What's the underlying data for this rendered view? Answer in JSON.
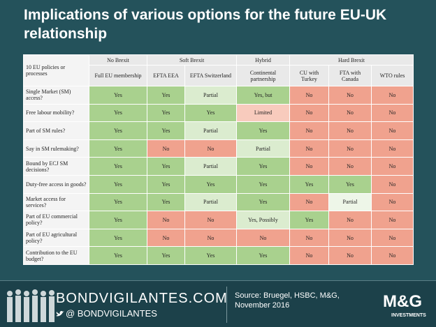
{
  "title": "Implications of various options for the future EU-UK relationship",
  "table": {
    "corner": "10 EU policies or processes",
    "groups": [
      "No Brexit",
      "Soft Brexit",
      "Hybrid",
      "Hard Brexit"
    ],
    "columns": [
      "Full EU membership",
      "EFTA EEA",
      "EFTA Switzerland",
      "Continental partnership",
      "CU with Turkey",
      "FTA with Canada",
      "WTO rules"
    ],
    "rows": [
      {
        "label": "Single Market (SM) access?",
        "cells": [
          "Yes",
          "Yes",
          "Partial",
          "Yes, but",
          "No",
          "No",
          "No"
        ],
        "colors": [
          "#a9d18e",
          "#a9d18e",
          "#dbeccf",
          "#a9d18e",
          "#f0a28e",
          "#f0a28e",
          "#f0a28e"
        ]
      },
      {
        "label": "Free labour mobility?",
        "cells": [
          "Yes",
          "Yes",
          "Yes",
          "Limited",
          "No",
          "No",
          "No"
        ],
        "colors": [
          "#a9d18e",
          "#a9d18e",
          "#a9d18e",
          "#f8cbbd",
          "#f0a28e",
          "#f0a28e",
          "#f0a28e"
        ]
      },
      {
        "label": "Part of SM rules?",
        "cells": [
          "Yes",
          "Yes",
          "Partial",
          "Yes",
          "No",
          "No",
          "No"
        ],
        "colors": [
          "#a9d18e",
          "#a9d18e",
          "#dbeccf",
          "#a9d18e",
          "#f0a28e",
          "#f0a28e",
          "#f0a28e"
        ]
      },
      {
        "label": "Say in SM rulemaking?",
        "cells": [
          "Yes",
          "No",
          "No",
          "Partial",
          "No",
          "No",
          "No"
        ],
        "colors": [
          "#a9d18e",
          "#f0a28e",
          "#f0a28e",
          "#dbeccf",
          "#f0a28e",
          "#f0a28e",
          "#f0a28e"
        ]
      },
      {
        "label": "Bound by ECJ SM decisions?",
        "cells": [
          "Yes",
          "Yes",
          "Partial",
          "Yes",
          "No",
          "No",
          "No"
        ],
        "colors": [
          "#a9d18e",
          "#a9d18e",
          "#dbeccf",
          "#a9d18e",
          "#f0a28e",
          "#f0a28e",
          "#f0a28e"
        ]
      },
      {
        "label": "Duty-free access in goods?",
        "cells": [
          "Yes",
          "Yes",
          "Yes",
          "Yes",
          "Yes",
          "Yes",
          "No"
        ],
        "colors": [
          "#a9d18e",
          "#a9d18e",
          "#a9d18e",
          "#a9d18e",
          "#a9d18e",
          "#a9d18e",
          "#f0a28e"
        ]
      },
      {
        "label": "Market access for services?",
        "cells": [
          "Yes",
          "Yes",
          "Partial",
          "Yes",
          "No",
          "Partial",
          "No"
        ],
        "colors": [
          "#a9d18e",
          "#a9d18e",
          "#dbeccf",
          "#a9d18e",
          "#f0a28e",
          "#eef6e8",
          "#f0a28e"
        ]
      },
      {
        "label": "Part of EU commercial policy?",
        "cells": [
          "Yes",
          "No",
          "No",
          "Yes, Possibly",
          "Yes",
          "No",
          "No"
        ],
        "colors": [
          "#a9d18e",
          "#f0a28e",
          "#f0a28e",
          "#dbeccf",
          "#a9d18e",
          "#f0a28e",
          "#f0a28e"
        ]
      },
      {
        "label": "Part of EU agricultural policy?",
        "cells": [
          "Yes",
          "No",
          "No",
          "No",
          "No",
          "No",
          "No"
        ],
        "colors": [
          "#a9d18e",
          "#f0a28e",
          "#f0a28e",
          "#f0a28e",
          "#f0a28e",
          "#f0a28e",
          "#f0a28e"
        ]
      },
      {
        "label": "Contribution to the EU budget?",
        "cells": [
          "Yes",
          "Yes",
          "Yes",
          "Yes",
          "No",
          "No",
          "No"
        ],
        "colors": [
          "#a9d18e",
          "#a9d18e",
          "#a9d18e",
          "#a9d18e",
          "#f0a28e",
          "#f0a28e",
          "#f0a28e"
        ]
      }
    ]
  },
  "footer": {
    "site": "BONDVIGILANTES.COM",
    "handle": "@ BONDVIGILANTES",
    "source": "Source: Bruegel, HSBC, M&G, November 2016",
    "logo": "M&G",
    "logo_sub": "INVESTMENTS"
  }
}
